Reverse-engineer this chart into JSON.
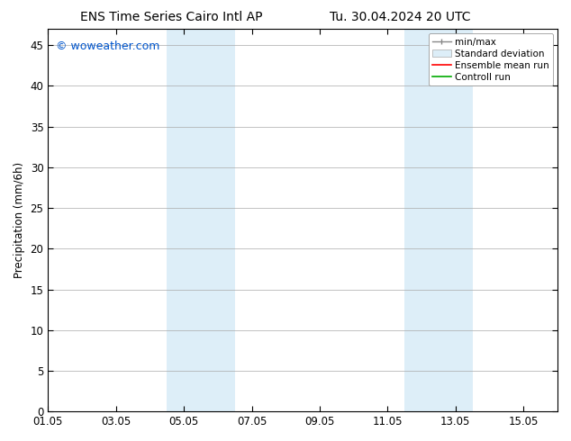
{
  "title_left": "ENS Time Series Cairo Intl AP",
  "title_right": "Tu. 30.04.2024 20 UTC",
  "ylabel": "Precipitation (mm/6h)",
  "ylim": [
    0,
    47
  ],
  "yticks": [
    0,
    5,
    10,
    15,
    20,
    25,
    30,
    35,
    40,
    45
  ],
  "xtick_labels": [
    "01.05",
    "03.05",
    "05.05",
    "07.05",
    "09.05",
    "11.05",
    "13.05",
    "15.05"
  ],
  "xtick_positions": [
    0,
    2,
    4,
    6,
    8,
    10,
    12,
    14
  ],
  "xlim": [
    0,
    15
  ],
  "shade_bands": [
    {
      "xstart": 3.5,
      "xend": 5.5
    },
    {
      "xstart": 10.5,
      "xend": 12.5
    }
  ],
  "shade_color": "#ddeef8",
  "watermark_text": "© woweather.com",
  "watermark_color": "#0055cc",
  "bg_color": "#ffffff",
  "axes_bg_color": "#ffffff",
  "grid_color": "#aaaaaa",
  "title_fontsize": 10,
  "tick_fontsize": 8.5,
  "ylabel_fontsize": 8.5,
  "legend_fontsize": 7.5,
  "watermark_fontsize": 9
}
